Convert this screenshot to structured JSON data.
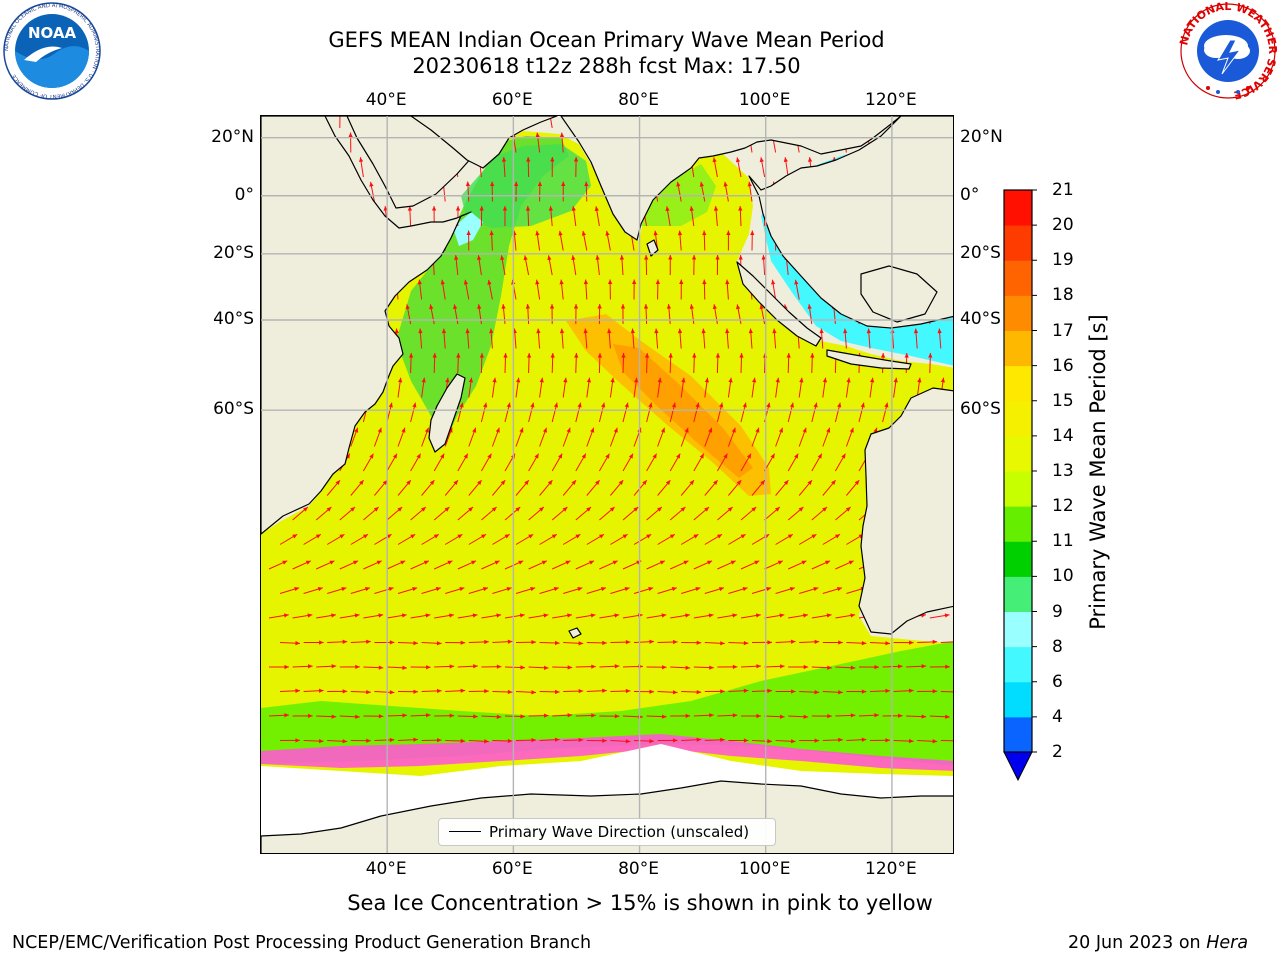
{
  "header": {
    "title_line_1": "GEFS MEAN Indian Ocean Primary Wave Mean Period",
    "title_line_2": "20230618 t12z 288h fcst   Max: 17.50"
  },
  "logos": {
    "noaa_text": "NOAA",
    "noaa_ring_text": "NATIONAL OCEANIC AND ATMOSPHERIC ADMINISTRATION · U.S. DEPARTMENT OF COMMERCE",
    "nws_ring_text": "NATIONAL WEATHER SERVICE"
  },
  "map": {
    "lon_range": [
      20,
      130
    ],
    "lat_range": [
      -88,
      27
    ],
    "lon_ticks": [
      "40°E",
      "60°E",
      "80°E",
      "100°E",
      "120°E"
    ],
    "lat_ticks": [
      "20°N",
      "0°",
      "20°S",
      "40°S",
      "60°S"
    ],
    "gridlines": true,
    "land_color": "#efeedd",
    "arrow_color": "#ff1010"
  },
  "colorbar": {
    "label": "Primary Wave Mean Period [s]",
    "levels": [
      "2",
      "4",
      "6",
      "8",
      "9",
      "10",
      "11",
      "12",
      "13",
      "14",
      "15",
      "16",
      "17",
      "18",
      "19",
      "20",
      "21"
    ],
    "colors": [
      "#0a64ff",
      "#00ddff",
      "#44f8ff",
      "#99ffff",
      "#44ee77",
      "#00d000",
      "#66ee00",
      "#c8ff00",
      "#e8f800",
      "#f4f000",
      "#ffe800",
      "#ffb800",
      "#ff8c00",
      "#ff6400",
      "#ff3c00",
      "#ff1000"
    ],
    "extend_color": "#0000ee"
  },
  "legend": {
    "label": "Primary Wave Direction (unscaled)"
  },
  "footer": {
    "note": "Sea Ice Concentration > 15% is shown in pink to yellow",
    "left": "NCEP/EMC/Verification Post Processing Product Generation Branch",
    "date": "20 Jun 2023 on",
    "machine": "Hera"
  }
}
